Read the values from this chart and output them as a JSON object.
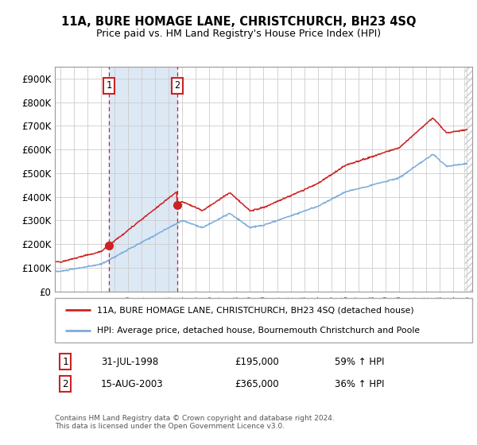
{
  "title1": "11A, BURE HOMAGE LANE, CHRISTCHURCH, BH23 4SQ",
  "title2": "Price paid vs. HM Land Registry's House Price Index (HPI)",
  "ylabel_ticks": [
    "£0",
    "£100K",
    "£200K",
    "£300K",
    "£400K",
    "£500K",
    "£600K",
    "£700K",
    "£800K",
    "£900K"
  ],
  "ytick_vals": [
    0,
    100000,
    200000,
    300000,
    400000,
    500000,
    600000,
    700000,
    800000,
    900000
  ],
  "ylim": [
    0,
    950000
  ],
  "xlim_start": 1994.6,
  "xlim_end": 2025.4,
  "sale1_x": 1998.58,
  "sale1_y": 195000,
  "sale2_x": 2003.62,
  "sale2_y": 365000,
  "sale1_date": "31-JUL-1998",
  "sale1_price": "£195,000",
  "sale1_hpi": "59% ↑ HPI",
  "sale2_date": "15-AUG-2003",
  "sale2_price": "£365,000",
  "sale2_hpi": "36% ↑ HPI",
  "legend_label1": "11A, BURE HOMAGE LANE, CHRISTCHURCH, BH23 4SQ (detached house)",
  "legend_label2": "HPI: Average price, detached house, Bournemouth Christchurch and Poole",
  "footer": "Contains HM Land Registry data © Crown copyright and database right 2024.\nThis data is licensed under the Open Government Licence v3.0.",
  "line1_color": "#cc2222",
  "line2_color": "#7aaddc",
  "shade_color": "#dde8f5",
  "grid_color": "#cccccc",
  "vline_color": "#cc2222",
  "hatch_color": "#cccccc",
  "bg_color": "#ffffff"
}
